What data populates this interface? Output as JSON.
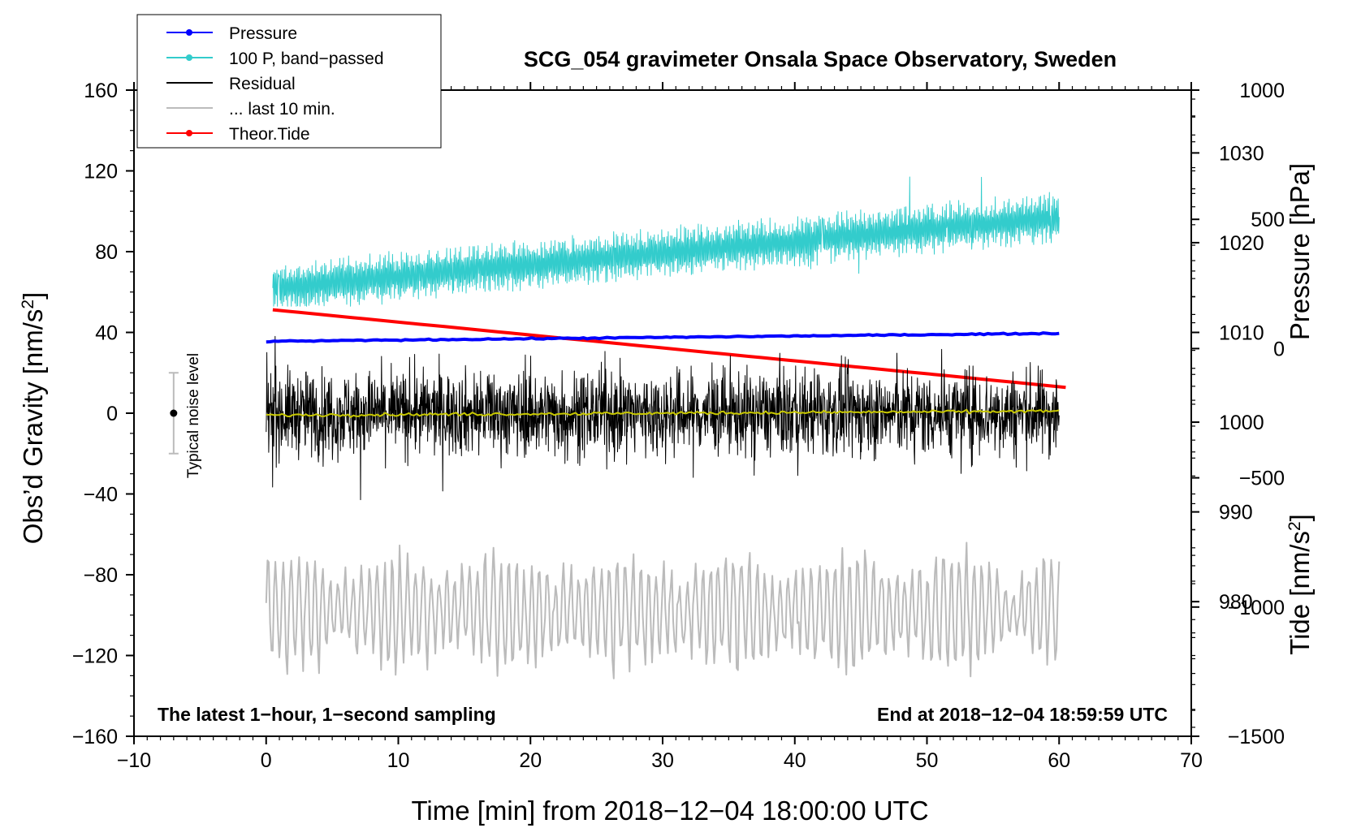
{
  "chart_data": {
    "type": "line",
    "title": "SCG_054 gravimeter Onsala Space Observatory, Sweden",
    "xlabel": "Time [min] from 2018−12−04 18:00:00 UTC",
    "ylabel_left_prefix": "Obs’d Gravity [nm/s",
    "ylabel_left_sup": "2",
    "ylabel_left_suffix": "]",
    "ylabel_right_pressure": "Pressure [hPa]",
    "ylabel_right_tide_prefix": "Tide [nm/s",
    "ylabel_right_tide_sup": "2",
    "ylabel_right_tide_suffix": "]",
    "xlim": [
      -10,
      70
    ],
    "ylim_left": [
      -160,
      160
    ],
    "ylim_pressure": [
      965,
      1037
    ],
    "ylim_tide": [
      -1500,
      1000
    ],
    "x_ticks": [
      -10,
      0,
      10,
      20,
      30,
      40,
      50,
      60,
      70
    ],
    "x_tick_labels": [
      "−10",
      "0",
      "10",
      "20",
      "30",
      "40",
      "50",
      "60",
      "70"
    ],
    "y_left_ticks": [
      160,
      120,
      80,
      40,
      0,
      -40,
      -80,
      -120,
      -160
    ],
    "y_left_tick_labels": [
      "160",
      "120",
      "80",
      "40",
      "0",
      "−40",
      "−80",
      "−120",
      "−160"
    ],
    "y_pressure_ticks": [
      1030,
      1020,
      1010,
      1000,
      990,
      980
    ],
    "y_pressure_tick_labels": [
      "1030",
      "1020",
      "1010",
      "1000",
      "990",
      "980"
    ],
    "y_tide_ticks": [
      1000,
      500,
      0,
      -500,
      -1000,
      -1500
    ],
    "y_tide_tick_labels": [
      "1000",
      "500",
      "0",
      "−500",
      "−1000",
      "−1500"
    ],
    "legend": [
      {
        "label": "Pressure",
        "color": "#0000ff",
        "marker": true
      },
      {
        "label": "100 P, band−passed",
        "color": "#33cccc",
        "marker": true
      },
      {
        "label": "Residual",
        "color": "#000000",
        "marker": false
      },
      {
        "label": "... last 10 min.",
        "color": "#bbbbbb",
        "marker": false
      },
      {
        "label": "Theor.Tide",
        "color": "#ff0000",
        "marker": true
      }
    ],
    "legend_position": "top-left",
    "bottom_left_note": "The latest 1−hour, 1−second sampling",
    "bottom_right_note": "End at 2018−12−04 18:59:59 UTC",
    "noise_label": "Typical noise level",
    "noise_center": 0,
    "noise_halfwidth": 20,
    "noise_x": -7,
    "series": [
      {
        "name": "Pressure",
        "axis": "pressure",
        "color": "#0000ff",
        "x_range": [
          0,
          60
        ],
        "start": 1009.0,
        "end": 1009.9,
        "noise": 0.08
      },
      {
        "name": "100 P, band−passed",
        "axis": "left",
        "color": "#33cccc",
        "x_range": [
          0.5,
          60
        ],
        "trend_start": 62,
        "trend_end": 97,
        "noise": 11,
        "spike_min": 53,
        "spike_max": 117
      },
      {
        "name": "Residual",
        "axis": "left",
        "color": "#000000",
        "x_range": [
          0,
          60
        ],
        "mean": 0,
        "noise": 15,
        "min": -53,
        "max": 50
      },
      {
        "name": "... last 10 min.",
        "axis": "left",
        "color": "#bbbbbb",
        "x_range": [
          0,
          60
        ],
        "center": -98,
        "amplitude": 26,
        "min": -135,
        "max": -53
      },
      {
        "name": "Residual smoothed",
        "axis": "left",
        "color": "#c8c800",
        "x_range": [
          0,
          60
        ],
        "start": -1,
        "end": 1,
        "noise": 0.8
      },
      {
        "name": "Theor.Tide",
        "axis": "tide",
        "color": "#ff0000",
        "x_range": [
          0.5,
          60.5
        ],
        "start": 150,
        "end": -150
      }
    ]
  }
}
